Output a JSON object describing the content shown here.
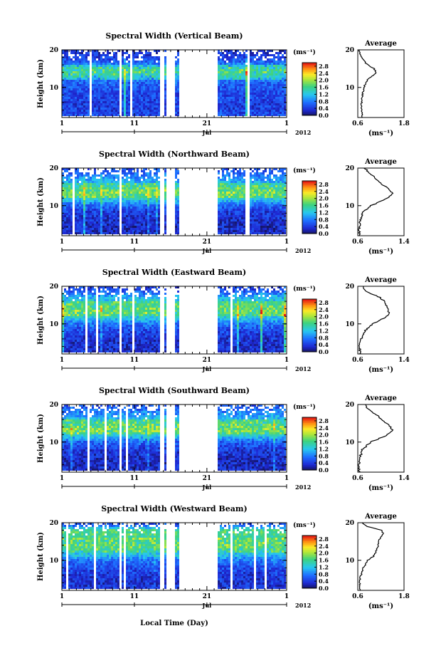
{
  "figure": {
    "xlabel": "Local Time (Day)",
    "month_label": "Jul",
    "year_label": "2012",
    "x_tick_labels": [
      "1",
      "11",
      "21",
      "1"
    ],
    "y_tick_labels": [
      "10",
      "20"
    ],
    "ylabel": "Height (km)",
    "colorbar_unit": "(ms⁻¹)",
    "colorbar_ticks": [
      "0.0",
      "0.4",
      "0.8",
      "1.2",
      "1.6",
      "2.0",
      "2.4",
      "2.8"
    ],
    "average_title": "Average",
    "average_unit": "(ms⁻¹)"
  },
  "chart_data": [
    {
      "type": "heatmap",
      "title": "Spectral Width (Vertical Beam)",
      "ylabel": "Height (km)",
      "xlabel": "",
      "ylim": [
        2,
        20
      ],
      "xlim": [
        1,
        32
      ],
      "colorbar_range": [
        0.0,
        3.0
      ],
      "data_gaps_days": [
        [
          9.0,
          9.3
        ],
        [
          14.5,
          15.0
        ],
        [
          15.4,
          16.6
        ],
        [
          17.3,
          22.4
        ]
      ],
      "profile": {
        "title": "Average",
        "xlim": [
          0.6,
          1.8
        ],
        "xticks": [
          "0.6",
          "1.8"
        ],
        "heights_km": [
          2,
          4,
          6,
          8,
          10,
          11,
          12,
          13,
          14,
          15,
          16,
          17,
          18,
          19,
          20
        ],
        "values": [
          0.72,
          0.69,
          0.7,
          0.72,
          0.76,
          0.8,
          0.86,
          0.97,
          1.08,
          1.02,
          0.86,
          0.76,
          0.7,
          0.66,
          0.63
        ]
      }
    },
    {
      "type": "heatmap",
      "title": "Spectral Width (Northward Beam)",
      "ylabel": "Height (km)",
      "xlabel": "",
      "ylim": [
        2,
        20
      ],
      "xlim": [
        1,
        32
      ],
      "colorbar_range": [
        0.0,
        3.0
      ],
      "data_gaps_days": [
        [
          9.0,
          9.3
        ],
        [
          14.5,
          15.0
        ],
        [
          15.4,
          16.6
        ],
        [
          17.3,
          22.4
        ]
      ],
      "profile": {
        "title": "Average",
        "xlim": [
          0.6,
          1.4
        ],
        "xticks": [
          "0.6",
          "1.4"
        ],
        "heights_km": [
          2,
          4,
          6,
          8,
          10,
          11,
          12,
          13,
          14,
          15,
          16,
          17,
          18,
          19,
          20
        ],
        "values": [
          0.63,
          0.62,
          0.64,
          0.68,
          0.82,
          0.98,
          1.12,
          1.2,
          1.16,
          1.08,
          1.0,
          0.92,
          0.86,
          0.78,
          0.72
        ]
      }
    },
    {
      "type": "heatmap",
      "title": "Spectral Width (Eastward Beam)",
      "ylabel": "Height (km)",
      "xlabel": "",
      "ylim": [
        2,
        20
      ],
      "xlim": [
        1,
        32
      ],
      "colorbar_range": [
        0.0,
        3.0
      ],
      "data_gaps_days": [
        [
          9.0,
          9.3
        ],
        [
          14.5,
          15.0
        ],
        [
          15.4,
          16.6
        ],
        [
          17.3,
          22.4
        ]
      ],
      "profile": {
        "title": "Average",
        "xlim": [
          0.6,
          1.4
        ],
        "xticks": [
          "0.6",
          "1.4"
        ],
        "heights_km": [
          2,
          4,
          6,
          8,
          10,
          11,
          12,
          13,
          14,
          15,
          16,
          17,
          18,
          19,
          20
        ],
        "values": [
          0.64,
          0.63,
          0.66,
          0.72,
          0.86,
          1.0,
          1.1,
          1.14,
          1.12,
          1.1,
          1.06,
          0.98,
          0.84,
          0.72,
          0.7
        ]
      }
    },
    {
      "type": "heatmap",
      "title": "Spectral Width (Southward Beam)",
      "ylabel": "Height (km)",
      "xlabel": "",
      "ylim": [
        2,
        20
      ],
      "xlim": [
        1,
        32
      ],
      "colorbar_range": [
        0.0,
        3.0
      ],
      "data_gaps_days": [
        [
          9.0,
          9.3
        ],
        [
          14.5,
          15.0
        ],
        [
          15.4,
          16.6
        ],
        [
          17.3,
          22.4
        ]
      ],
      "profile": {
        "title": "Average",
        "xlim": [
          0.6,
          1.4
        ],
        "xticks": [
          "0.6",
          "1.4"
        ],
        "heights_km": [
          2,
          4,
          6,
          8,
          10,
          11,
          12,
          13,
          14,
          15,
          16,
          17,
          18,
          19,
          20
        ],
        "values": [
          0.63,
          0.62,
          0.64,
          0.68,
          0.82,
          0.98,
          1.12,
          1.2,
          1.16,
          1.1,
          1.02,
          0.94,
          0.86,
          0.78,
          0.72
        ]
      }
    },
    {
      "type": "heatmap",
      "title": "Spectral Width (Westward Beam)",
      "ylabel": "Height (km)",
      "xlabel": "Local Time (Day)",
      "ylim": [
        2,
        20
      ],
      "xlim": [
        1,
        32
      ],
      "colorbar_range": [
        0.0,
        3.0
      ],
      "data_gaps_days": [
        [
          9.0,
          9.3
        ],
        [
          14.5,
          15.0
        ],
        [
          15.4,
          16.6
        ],
        [
          17.3,
          22.4
        ]
      ],
      "profile": {
        "title": "Average",
        "xlim": [
          0.6,
          1.8
        ],
        "xticks": [
          "0.6",
          "1.8"
        ],
        "heights_km": [
          2,
          4,
          6,
          8,
          10,
          11,
          12,
          13,
          14,
          15,
          16,
          17,
          18,
          19,
          20
        ],
        "values": [
          0.66,
          0.65,
          0.68,
          0.74,
          0.86,
          1.0,
          1.06,
          1.1,
          1.14,
          1.12,
          1.2,
          1.26,
          1.22,
          0.86,
          0.72
        ]
      }
    }
  ]
}
